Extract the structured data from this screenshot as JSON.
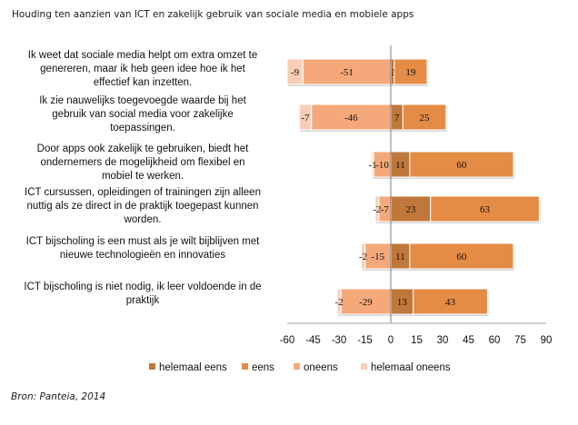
{
  "title": "Houding ten aanzien van ICT en zakelijk gebruik van sociale media en mobiele apps",
  "source": "Bron: Panteia, 2014",
  "colors": {
    "helemaal_eens": "#c0773a",
    "eens": "#e48b45",
    "oneens": "#f5a97a",
    "helemaal_oneens": "#f9cdb5"
  },
  "chart_data": {
    "type": "bar",
    "orientation": "horizontal",
    "stacked": "diverging",
    "title": "Houding ten aanzien van ICT en zakelijk gebruik van sociale media en mobiele apps",
    "xlabel": "",
    "ylabel": "",
    "xlim": [
      -60,
      90
    ],
    "xticks": [
      -60,
      -45,
      -30,
      -15,
      0,
      15,
      30,
      45,
      60,
      75,
      90
    ],
    "grid": false,
    "legend_position": "bottom",
    "categories": [
      [
        "Ik weet dat sociale media helpt om extra omzet te",
        "genereren, maar ik heb geen idee hoe ik het",
        "effectief kan inzetten."
      ],
      [
        "Ik zie nauwelijks toegevoegde waarde bij het",
        "gebruik van social media voor zakelijke",
        "toepassingen."
      ],
      [
        "Door apps ook zakelijk te gebruiken, biedt het",
        "ondernemers de mogelijkheid om flexibel en",
        "mobiel te werken."
      ],
      [
        "ICT cursussen, opleidingen of trainingen zijn alleen",
        "nuttig als ze direct in de praktijk toegepast kunnen",
        "worden."
      ],
      [
        "ICT bijscholing is een must als je wilt bijblijven met",
        "nieuwe technologieën en innovaties"
      ],
      [
        "ICT bijscholing is niet nodig, ik leer voldoende in de",
        "praktijk"
      ]
    ],
    "series": [
      {
        "name": "helemaal eens",
        "key": "helemaal_eens",
        "values": [
          2,
          7,
          11,
          23,
          11,
          13
        ]
      },
      {
        "name": "eens",
        "key": "eens",
        "values": [
          19,
          25,
          60,
          63,
          60,
          43
        ]
      },
      {
        "name": "oneens",
        "key": "oneens",
        "values": [
          -51,
          -46,
          -10,
          -7,
          -15,
          -29
        ]
      },
      {
        "name": "helemaal oneens",
        "key": "helemaal_oneens",
        "values": [
          -9,
          -7,
          -1,
          -2,
          -2,
          -2
        ]
      }
    ]
  }
}
